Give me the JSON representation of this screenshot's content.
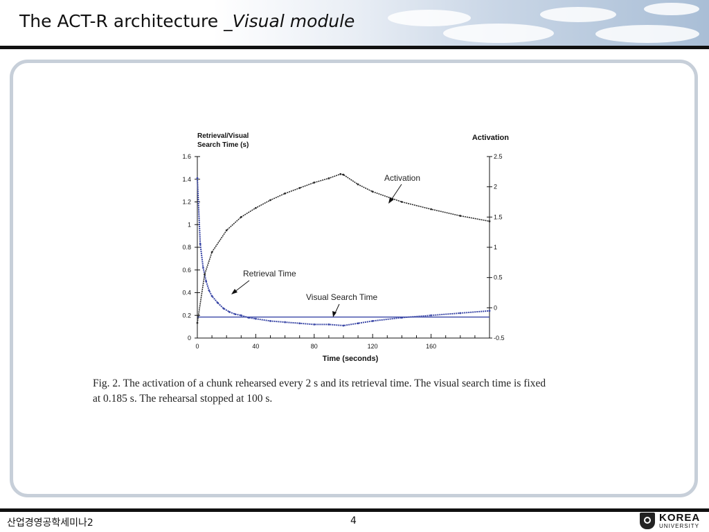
{
  "slide": {
    "title_main": "The ACT-R architecture _",
    "title_sub": "Visual module",
    "caption_line1": "Fig. 2.  The activation of a chunk rehearsed every 2 s and its retrieval time. The visual search time is fixed",
    "caption_line2": "at 0.185 s. The rehearsal stopped at 100 s.",
    "footer_left": "산업경영공학세미나2",
    "page_number": "4",
    "logo_line1": "KOREA",
    "logo_line2": "UNIVERSITY"
  },
  "colors": {
    "retrieval": "#3a47a6",
    "visual_search": "#3a47a6",
    "activation": "#2a2a2a",
    "axis": "#111111"
  },
  "chart_data": {
    "type": "line",
    "title": "",
    "xlabel": "Time (seconds)",
    "ylabel_left": "Retrieval/Visual Search Time (s)",
    "ylabel_left_lines": [
      "Retrieval/Visual",
      "Search Time (s)"
    ],
    "ylabel_right": "Activation",
    "xlim": [
      0,
      200
    ],
    "ylim_left": [
      0,
      1.6
    ],
    "ylim_right": [
      -0.5,
      2.5
    ],
    "x_ticks": [
      0,
      40,
      80,
      120,
      160
    ],
    "y_left_ticks": [
      0,
      0.2,
      0.4,
      0.6,
      0.8,
      1,
      1.2,
      1.4,
      1.6
    ],
    "y_right_ticks": [
      -0.5,
      0,
      0.5,
      1,
      1.5,
      2,
      2.5
    ],
    "annotations": [
      "Activation",
      "Retrieval Time",
      "Visual Search Time"
    ],
    "series": [
      {
        "axis": "left",
        "x": [
          0,
          2,
          4,
          6,
          8,
          10,
          14,
          18,
          22,
          26,
          30,
          35,
          40,
          50,
          60,
          70,
          80,
          90,
          100,
          110,
          120,
          140,
          160,
          180,
          200
        ],
        "values": [
          1.41,
          0.83,
          0.62,
          0.5,
          0.42,
          0.37,
          0.31,
          0.26,
          0.23,
          0.21,
          0.2,
          0.18,
          0.17,
          0.15,
          0.14,
          0.13,
          0.12,
          0.12,
          0.11,
          0.13,
          0.15,
          0.18,
          0.2,
          0.22,
          0.24
        ]
      },
      {
        "axis": "left",
        "x": [
          0,
          200
        ],
        "values": [
          0.185,
          0.185
        ]
      },
      {
        "axis": "right",
        "x": [
          0,
          5,
          10,
          20,
          30,
          40,
          50,
          60,
          70,
          80,
          90,
          98,
          100,
          110,
          120,
          140,
          160,
          180,
          200
        ],
        "values": [
          -0.25,
          0.55,
          0.92,
          1.28,
          1.5,
          1.65,
          1.78,
          1.89,
          1.98,
          2.07,
          2.14,
          2.21,
          2.2,
          2.04,
          1.92,
          1.75,
          1.63,
          1.52,
          1.43
        ]
      }
    ]
  }
}
